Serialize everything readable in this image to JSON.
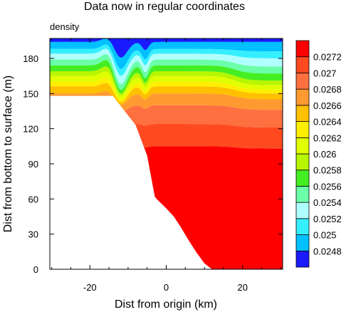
{
  "chart_data": {
    "type": "heatmap",
    "title": "Data now in regular coordinates",
    "subtitle": "density",
    "xlabel": "Dist from origin (km)",
    "ylabel": "Dist from bottom to surface (m)",
    "xlim": [
      -30.5,
      30.5
    ],
    "ylim": [
      0,
      197
    ],
    "x_ticks": [
      -20,
      0,
      20
    ],
    "y_ticks": [
      0,
      30,
      60,
      90,
      120,
      150,
      180
    ],
    "grid": false,
    "legend_position": "right",
    "colorbar": {
      "labels": [
        "0.0248",
        "0.025",
        "0.0252",
        "0.0254",
        "0.0256",
        "0.0258",
        "0.026",
        "0.0262",
        "0.0264",
        "0.0266",
        "0.0268",
        "0.027",
        "0.0272"
      ],
      "colors": [
        "#1a1aff",
        "#00c0ff",
        "#35efff",
        "#b0ffff",
        "#6affa8",
        "#44ee22",
        "#b8f500",
        "#e0ff00",
        "#ffee00",
        "#ffc000",
        "#ff9a30",
        "#ff7040",
        "#ff4a20",
        "#ff0000"
      ]
    },
    "bathymetry": {
      "x": [
        -30.5,
        -14,
        -8,
        -5,
        -3,
        -2.5,
        0,
        2,
        4,
        6,
        8,
        10,
        12,
        30.5
      ],
      "y": [
        148,
        148,
        123,
        97,
        62,
        60,
        52,
        45,
        35,
        24,
        14,
        5,
        0,
        0
      ]
    },
    "isopycnals": [
      {
        "base": 194,
        "dip": 14,
        "shelf": 0
      },
      {
        "base": 188,
        "dip": 18,
        "shelf": 2
      },
      {
        "base": 184,
        "dip": 20,
        "shelf": 4
      },
      {
        "base": 179,
        "dip": 22,
        "shelf": 6
      },
      {
        "base": 174,
        "dip": 22,
        "shelf": 7
      },
      {
        "base": 169,
        "dip": 20,
        "shelf": 8
      },
      {
        "base": 165,
        "dip": 18,
        "shelf": 8
      },
      {
        "base": 160,
        "dip": 16,
        "shelf": 7
      },
      {
        "base": 156,
        "dip": 14,
        "shelf": 6
      },
      {
        "base": 150,
        "dip": 10,
        "shelf": 5
      },
      {
        "base": 140,
        "dip": 6,
        "shelf": 4
      },
      {
        "base": 124,
        "dip": 3,
        "shelf": 3
      },
      {
        "base": 105,
        "dip": 2,
        "shelf": 2
      }
    ]
  }
}
